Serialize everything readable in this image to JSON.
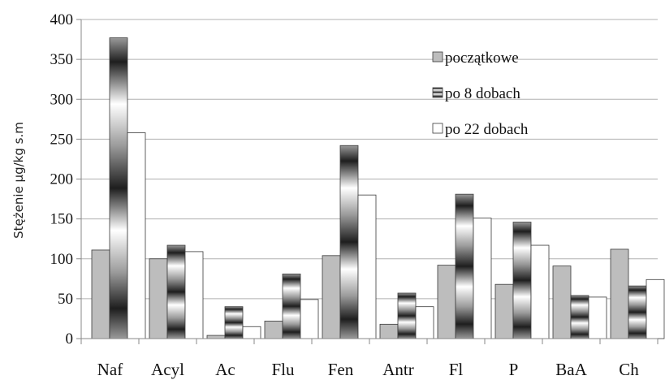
{
  "chart_data": {
    "type": "bar",
    "title": "",
    "xlabel": "",
    "ylabel": "Stężenie µg/kg s.m",
    "ylim": [
      0,
      400
    ],
    "yticks": [
      0,
      50,
      100,
      150,
      200,
      250,
      300,
      350,
      400
    ],
    "grid": true,
    "legend_position": "top-right",
    "categories": [
      "Naf",
      "Acyl",
      "Ac",
      "Flu",
      "Fen",
      "Antr",
      "Fl",
      "P",
      "BaA",
      "Ch"
    ],
    "series": [
      {
        "name": "początkowe",
        "values": [
          111,
          100,
          4,
          22,
          104,
          18,
          92,
          68,
          91,
          112
        ]
      },
      {
        "name": "po 8 dobach",
        "values": [
          377,
          117,
          40,
          81,
          242,
          57,
          181,
          146,
          54,
          66
        ]
      },
      {
        "name": "po 22 dobach",
        "values": [
          258,
          109,
          15,
          49,
          180,
          40,
          151,
          117,
          52,
          74
        ]
      }
    ]
  },
  "colors": {
    "initial": "#bdbdbd",
    "after22": "#ffffff",
    "gradient_dark": "#1e1e1e",
    "gradient_light": "#ffffff",
    "axis": "#888888",
    "grid": "#b0b0b0"
  }
}
